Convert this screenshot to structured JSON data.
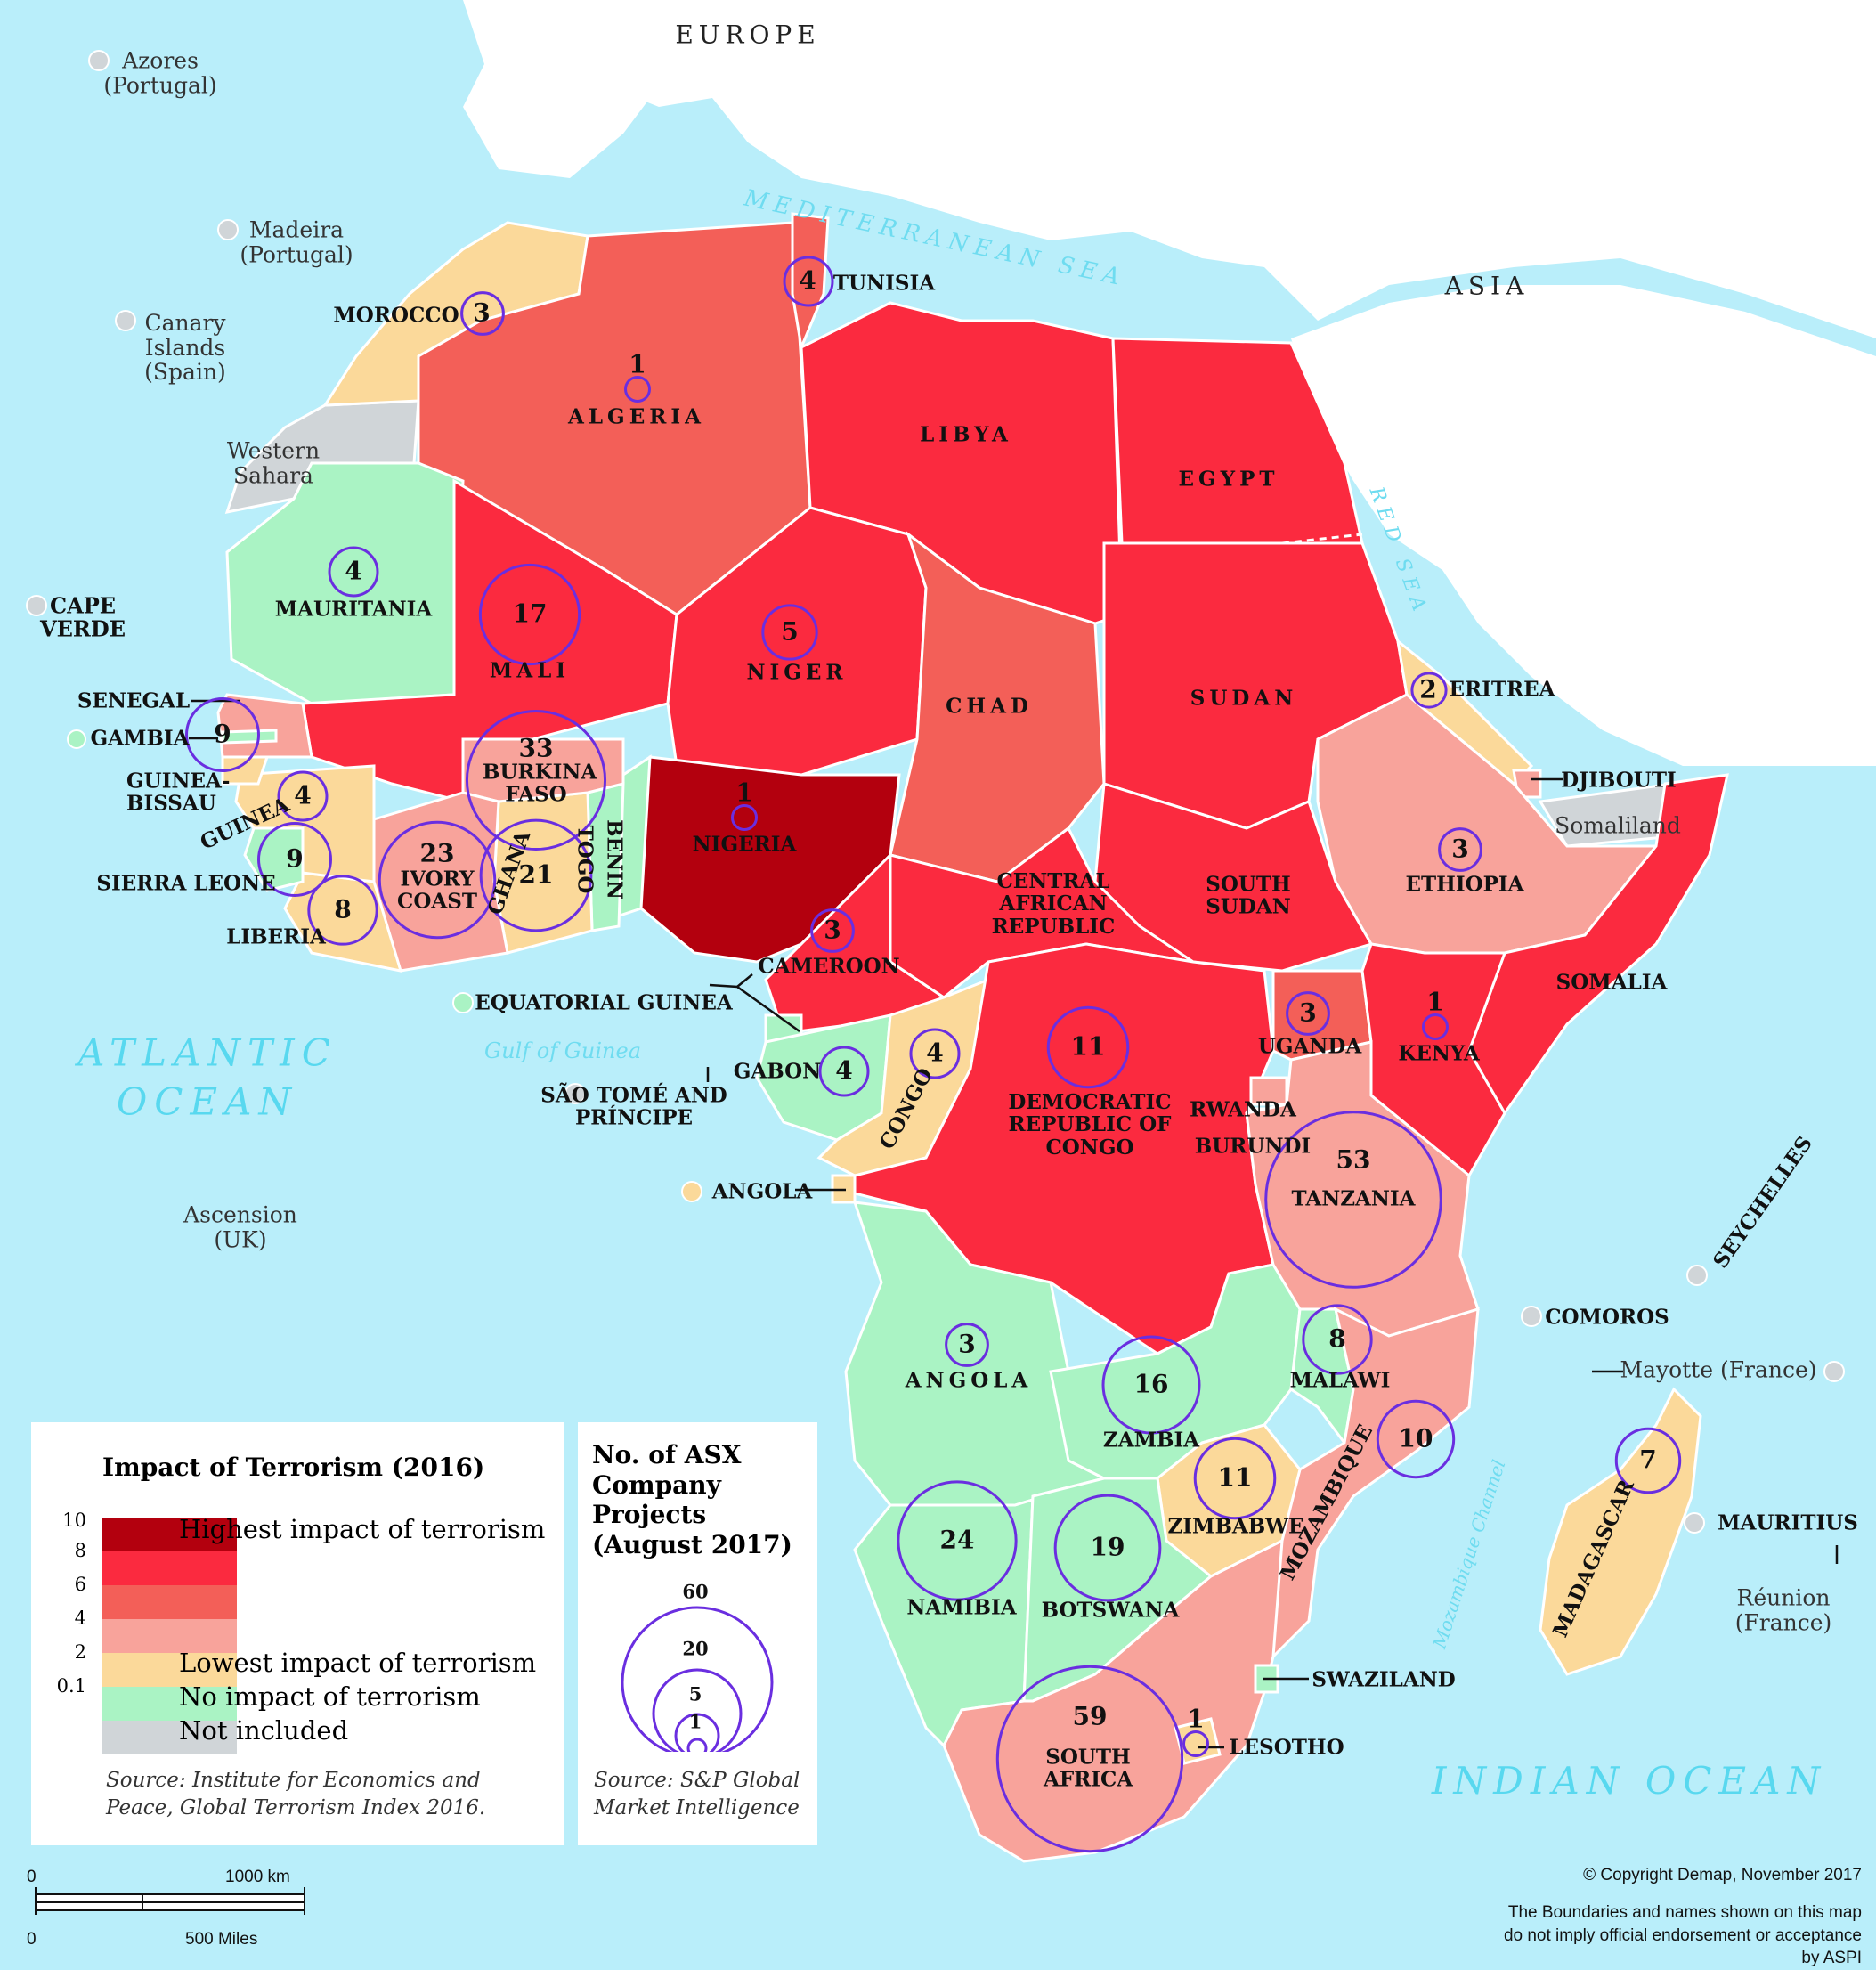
{
  "continents": [
    {
      "id": "europe",
      "label": "EUROPE"
    },
    {
      "id": "asia",
      "label": "ASIA"
    }
  ],
  "water": [
    {
      "id": "atlantic",
      "label": "ATLANTIC OCEAN"
    },
    {
      "id": "indian",
      "label": "INDIAN OCEAN"
    },
    {
      "id": "med",
      "label": "MEDITERRANEAN SEA"
    },
    {
      "id": "red",
      "label": "RED SEA"
    },
    {
      "id": "gulf",
      "label": "Gulf of Guinea"
    },
    {
      "id": "moz",
      "label": "Mozambique Channel"
    }
  ],
  "external": [
    {
      "id": "azores",
      "label": "Azores (Portugal)"
    },
    {
      "id": "madeira",
      "label": "Madeira (Portugal)"
    },
    {
      "id": "canary",
      "label": "Canary Islands (Spain)"
    },
    {
      "id": "western-sahara",
      "label": "Western Sahara"
    },
    {
      "id": "somaliland",
      "label": "Somaliland"
    },
    {
      "id": "ascension",
      "label": "Ascension (UK)"
    },
    {
      "id": "mayotte",
      "label": "Mayotte (France)"
    },
    {
      "id": "reunion",
      "label": "Réunion (France)"
    }
  ],
  "countries": [
    {
      "id": "morocco",
      "label": "MOROCCO",
      "projects": 3,
      "impact": "lowest"
    },
    {
      "id": "algeria",
      "label": "ALGERIA",
      "projects": 1,
      "impact": "high"
    },
    {
      "id": "tunisia",
      "label": "TUNISIA",
      "projects": 4,
      "impact": "high"
    },
    {
      "id": "libya",
      "label": "LIBYA",
      "projects": null,
      "impact": "very-high"
    },
    {
      "id": "egypt",
      "label": "EGYPT",
      "projects": null,
      "impact": "very-high"
    },
    {
      "id": "mauritania",
      "label": "MAURITANIA",
      "projects": 4,
      "impact": "none"
    },
    {
      "id": "mali",
      "label": "MALI",
      "projects": 17,
      "impact": "very-high"
    },
    {
      "id": "niger",
      "label": "NIGER",
      "projects": 5,
      "impact": "very-high"
    },
    {
      "id": "chad",
      "label": "CHAD",
      "projects": null,
      "impact": "high"
    },
    {
      "id": "sudan",
      "label": "SUDAN",
      "projects": null,
      "impact": "very-high"
    },
    {
      "id": "eritrea",
      "label": "ERITREA",
      "projects": 2,
      "impact": "lowest"
    },
    {
      "id": "djibouti",
      "label": "DJIBOUTI",
      "projects": null,
      "impact": "low"
    },
    {
      "id": "ethiopia",
      "label": "ETHIOPIA",
      "projects": 3,
      "impact": "low"
    },
    {
      "id": "somalia",
      "label": "SOMALIA",
      "projects": null,
      "impact": "very-high"
    },
    {
      "id": "south-sudan",
      "label": "SOUTH SUDAN",
      "projects": null,
      "impact": "very-high"
    },
    {
      "id": "car",
      "label": "CENTRAL AFRICAN REPUBLIC",
      "projects": null,
      "impact": "very-high"
    },
    {
      "id": "cameroon",
      "label": "CAMEROON",
      "projects": 3,
      "impact": "very-high"
    },
    {
      "id": "nigeria",
      "label": "NIGERIA",
      "projects": 1,
      "impact": "highest"
    },
    {
      "id": "benin",
      "label": "BENIN",
      "projects": null,
      "impact": "none"
    },
    {
      "id": "togo",
      "label": "TOGO",
      "projects": null,
      "impact": "none"
    },
    {
      "id": "ghana",
      "label": "GHANA",
      "projects": 21,
      "impact": "lowest"
    },
    {
      "id": "burkina",
      "label": "BURKINA FASO",
      "projects": 33,
      "impact": "low"
    },
    {
      "id": "ivory",
      "label": "IVORY COAST",
      "projects": 23,
      "impact": "low"
    },
    {
      "id": "liberia",
      "label": "LIBERIA",
      "projects": 8,
      "impact": "lowest"
    },
    {
      "id": "sierra",
      "label": "SIERRA LEONE",
      "projects": 9,
      "impact": "none"
    },
    {
      "id": "guinea",
      "label": "GUINEA",
      "projects": 4,
      "impact": "lowest"
    },
    {
      "id": "guinea-bissau",
      "label": "GUINEA-BISSAU",
      "projects": null,
      "impact": "lowest"
    },
    {
      "id": "gambia",
      "label": "GAMBIA",
      "projects": null,
      "impact": "none"
    },
    {
      "id": "senegal",
      "label": "SENEGAL",
      "projects": 9,
      "impact": "low"
    },
    {
      "id": "cape-verde",
      "label": "CAPE VERDE",
      "projects": null,
      "impact": "not-included"
    },
    {
      "id": "eq-guinea",
      "label": "EQUATORIAL GUINEA",
      "projects": null,
      "impact": "none"
    },
    {
      "id": "gabon",
      "label": "GABON",
      "projects": 4,
      "impact": "none"
    },
    {
      "id": "congo",
      "label": "CONGO",
      "projects": 4,
      "impact": "lowest"
    },
    {
      "id": "sao-tome",
      "label": "SÃO TOMÉ AND PRÍNCIPE",
      "projects": null,
      "impact": "not-included"
    },
    {
      "id": "drc",
      "label": "DEMOCRATIC REPUBLIC OF CONGO",
      "projects": 11,
      "impact": "very-high"
    },
    {
      "id": "uganda",
      "label": "UGANDA",
      "projects": 3,
      "impact": "high"
    },
    {
      "id": "kenya",
      "label": "KENYA",
      "projects": 1,
      "impact": "very-high"
    },
    {
      "id": "rwanda",
      "label": "RWANDA",
      "projects": null,
      "impact": "low"
    },
    {
      "id": "burundi",
      "label": "BURUNDI",
      "projects": null,
      "impact": "very-high"
    },
    {
      "id": "tanzania",
      "label": "TANZANIA",
      "projects": 53,
      "impact": "low"
    },
    {
      "id": "angola-cabinda",
      "label": "ANGOLA",
      "projects": null,
      "impact": "lowest"
    },
    {
      "id": "angola",
      "label": "ANGOLA",
      "projects": 3,
      "impact": "none"
    },
    {
      "id": "zambia",
      "label": "ZAMBIA",
      "projects": 16,
      "impact": "none"
    },
    {
      "id": "malawi",
      "label": "MALAWI",
      "projects": 8,
      "impact": "none"
    },
    {
      "id": "mozambique",
      "label": "MOZAMBIQUE",
      "projects": 10,
      "impact": "low"
    },
    {
      "id": "zimbabwe",
      "label": "ZIMBABWE",
      "projects": 11,
      "impact": "lowest"
    },
    {
      "id": "namibia",
      "label": "NAMIBIA",
      "projects": 24,
      "impact": "none"
    },
    {
      "id": "botswana",
      "label": "BOTSWANA",
      "projects": 19,
      "impact": "none"
    },
    {
      "id": "south-africa",
      "label": "SOUTH AFRICA",
      "projects": 59,
      "impact": "low"
    },
    {
      "id": "lesotho",
      "label": "LESOTHO",
      "projects": 1,
      "impact": "lowest"
    },
    {
      "id": "swaziland",
      "label": "SWAZILAND",
      "projects": null,
      "impact": "none"
    },
    {
      "id": "madagascar",
      "label": "MADAGASCAR",
      "projects": 7,
      "impact": "lowest"
    },
    {
      "id": "seychelles",
      "label": "SEYCHELLES",
      "projects": null,
      "impact": "not-included"
    },
    {
      "id": "comoros",
      "label": "COMOROS",
      "projects": null,
      "impact": "not-included"
    },
    {
      "id": "mauritius",
      "label": "MAURITIUS",
      "projects": null,
      "impact": "not-included"
    }
  ],
  "colors": {
    "highest": "#b3000e",
    "very-high": "#fb2a3f",
    "high": "#f35f58",
    "low": "#f8a39b",
    "lowest": "#fbd99a",
    "none": "#aaf3c4",
    "not-included": "#d0d5d8",
    "land-outside": "#ffffff",
    "water": "#b9eefa",
    "bubble": "#6a2ee0"
  },
  "legend": {
    "title": "Impact of Terrorism (2016)",
    "ticks": [
      "10",
      "8",
      "6",
      "4",
      "2",
      "0.1"
    ],
    "items": [
      {
        "label": "Highest impact of terrorism",
        "color": "#b3000e"
      },
      {
        "label": "",
        "color": "#fb2a3f"
      },
      {
        "label": "",
        "color": "#f35f58"
      },
      {
        "label": "",
        "color": "#f8a39b"
      },
      {
        "label": "Lowest impact of terrorism",
        "color": "#fbd99a"
      },
      {
        "label": "No impact of terrorism",
        "color": "#aaf3c4"
      },
      {
        "label": "Not included",
        "color": "#d0d5d8"
      }
    ],
    "source": "Source: Institute for Economics and Peace, Global Terrorism Index 2016."
  },
  "bubble_legend": {
    "title": "No. of ASX Company Projects (August 2017)",
    "values": [
      "60",
      "20",
      "5",
      "1"
    ],
    "source": "Source: S&P Global Market Intelligence"
  },
  "scale": {
    "km_zero": "0",
    "km_label": "1000 km",
    "mi_zero": "0",
    "mi_label": "500 Miles"
  },
  "credits": {
    "copyright": "© Copyright Demap, November 2017",
    "disclaimer": "The Boundaries and names shown on this map do not imply official endorsement or acceptance by ASPI"
  }
}
